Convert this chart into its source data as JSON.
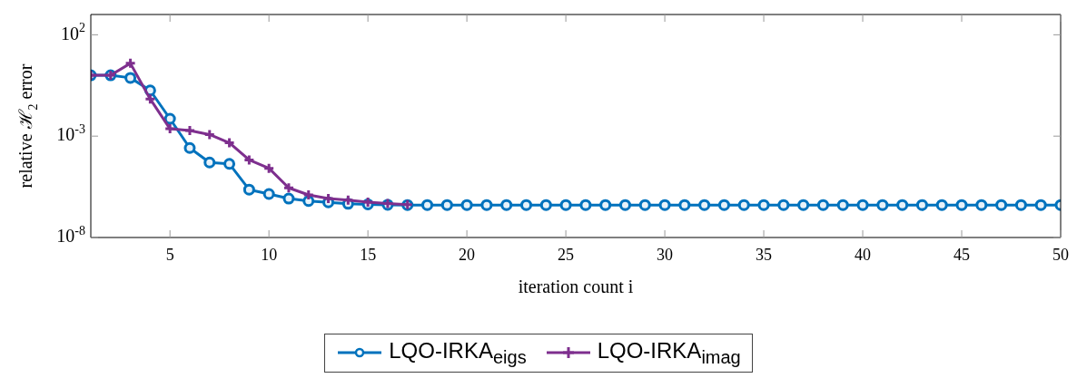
{
  "chart_data": {
    "type": "line",
    "xlabel": "iteration count i",
    "ylabel": "relative ℋ$_{2}$ error",
    "x": [
      1,
      2,
      3,
      4,
      5,
      6,
      7,
      8,
      9,
      10,
      11,
      12,
      13,
      14,
      15,
      16,
      17,
      18,
      19,
      20,
      21,
      22,
      23,
      24,
      25,
      26,
      27,
      28,
      29,
      30,
      31,
      32,
      33,
      34,
      35,
      36,
      37,
      38,
      39,
      40,
      41,
      42,
      43,
      44,
      45,
      46,
      47,
      48,
      49,
      50
    ],
    "series": [
      {
        "name": "LQO-IRKA$_{eigs}$",
        "color": "#0072bd",
        "marker": "circle",
        "values": [
          1,
          1,
          0.75,
          0.18,
          0.0072,
          0.00026,
          5e-05,
          4.3e-05,
          2.3e-06,
          1.4e-06,
          8.3e-07,
          6.3e-07,
          5.4e-07,
          4.6e-07,
          4.3e-07,
          4.1e-07,
          4e-07,
          4e-07,
          4e-07,
          4e-07,
          4e-07,
          4e-07,
          4e-07,
          4e-07,
          4e-07,
          4e-07,
          4e-07,
          4e-07,
          4e-07,
          4e-07,
          4e-07,
          4e-07,
          4e-07,
          4e-07,
          4e-07,
          4e-07,
          4e-07,
          4e-07,
          4e-07,
          4e-07,
          4e-07,
          4e-07,
          4e-07,
          4e-07,
          4e-07,
          4e-07,
          4e-07,
          4e-07,
          4e-07,
          4e-07
        ]
      },
      {
        "name": "LQO-IRKA$_{imag}$",
        "color": "#7e2f8e",
        "marker": "cross",
        "values": [
          1,
          1,
          3.9,
          0.068,
          0.0023,
          0.0019,
          0.0012,
          0.00047,
          6.7e-05,
          2.6e-05,
          2.8e-06,
          1.26e-06,
          8.3e-07,
          7e-07,
          5.5e-07,
          4.7e-07,
          4.2e-07,
          null,
          null,
          null,
          null,
          null,
          null,
          null,
          null,
          null,
          null,
          null,
          null,
          null,
          null,
          null,
          null,
          null,
          null,
          null,
          null,
          null,
          null,
          null,
          null,
          null,
          null,
          null,
          null,
          null,
          null,
          null,
          null,
          null
        ]
      }
    ],
    "xlim": [
      1,
      50
    ],
    "xticks": [
      5,
      10,
      15,
      20,
      25,
      30,
      35,
      40,
      45,
      50
    ],
    "log": "y",
    "ylim": [
      1e-08,
      1000
    ],
    "yticks": [
      {
        "value": 1e-08,
        "label": "10$^{-8}$"
      },
      {
        "value": 0.001,
        "label": "10$^{-3}$"
      },
      {
        "value": 100,
        "label": "10$^{2}$"
      }
    ],
    "grid": false,
    "legend": "bottom"
  }
}
